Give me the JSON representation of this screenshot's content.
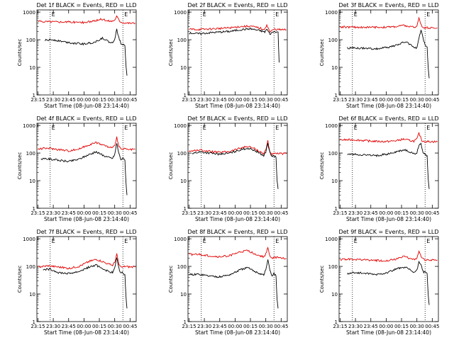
{
  "figure": {
    "background": "#ffffff",
    "axis_color": "#000000",
    "events_color": "#000000",
    "lld_color": "#e00000"
  },
  "chart_data": [
    {
      "type": "line",
      "title": "Det 1f BLACK = Events, RED = LLD",
      "xlabel": "Start Time (08-Jun-08 23:14:40)",
      "ylabel": "Counts/sec",
      "x_ticks": [
        "23:15",
        "23:30",
        "23:45",
        "00:00",
        "00:15",
        "00:30",
        "00:45"
      ],
      "y_ticks": [
        "1",
        "10",
        "100",
        "1000"
      ],
      "ylim": [
        1,
        1200
      ],
      "yscale": "log",
      "dotted_lines_at": [
        "23:27",
        "00:38"
      ],
      "markers": [
        "E",
        "E"
      ],
      "series": [
        {
          "name": "Events",
          "color": "#000000",
          "x": [
            "23:22",
            "23:30",
            "23:40",
            "23:50",
            "00:00",
            "00:10",
            "00:18",
            "00:22",
            "00:25",
            "00:28",
            "00:30",
            "00:32",
            "00:34",
            "00:36",
            "00:38",
            "00:40",
            "00:41",
            "00:42"
          ],
          "y": [
            95,
            100,
            85,
            75,
            70,
            80,
            115,
            95,
            80,
            75,
            110,
            230,
            120,
            75,
            70,
            60,
            12,
            5
          ]
        },
        {
          "name": "LLD",
          "color": "#e00000",
          "x": [
            "23:15",
            "23:30",
            "23:45",
            "00:00",
            "00:10",
            "00:17",
            "00:22",
            "00:27",
            "00:30",
            "00:32",
            "00:35",
            "00:38",
            "00:45",
            "00:50"
          ],
          "y": [
            460,
            450,
            440,
            420,
            470,
            560,
            490,
            470,
            520,
            700,
            470,
            420,
            400,
            400
          ]
        }
      ]
    },
    {
      "type": "line",
      "title": "Det 2f BLACK = Events, RED = LLD",
      "xlabel": "Start Time (08-Jun-08 23:14:40)",
      "ylabel": "Counts/sec",
      "x_ticks": [
        "23:15",
        "23:30",
        "23:45",
        "00:00",
        "00:15",
        "00:30",
        "00:45"
      ],
      "y_ticks": [
        "1",
        "10",
        "100",
        "1000"
      ],
      "ylim": [
        1,
        1200
      ],
      "yscale": "log",
      "dotted_lines_at": [
        "23:27",
        "00:38"
      ],
      "markers": [
        "E",
        "E"
      ],
      "series": [
        {
          "name": "Events",
          "color": "#000000",
          "x": [
            "23:15",
            "23:25",
            "23:40",
            "23:55",
            "00:05",
            "00:15",
            "00:25",
            "00:29",
            "00:31",
            "00:34",
            "00:38",
            "00:42",
            "00:43"
          ],
          "y": [
            175,
            165,
            185,
            200,
            230,
            250,
            210,
            190,
            240,
            160,
            200,
            190,
            15
          ]
        },
        {
          "name": "LLD",
          "color": "#e00000",
          "x": [
            "23:15",
            "23:25",
            "23:40",
            "23:55",
            "00:05",
            "00:15",
            "00:25",
            "00:28",
            "00:31",
            "00:34",
            "00:38",
            "00:45",
            "00:50"
          ],
          "y": [
            240,
            235,
            250,
            270,
            300,
            310,
            260,
            220,
            350,
            190,
            240,
            230,
            230
          ]
        }
      ]
    },
    {
      "type": "line",
      "title": "Det 3f BLACK = Events, RED = LLD",
      "xlabel": "Start Time (08-Jun-08 23:14:40)",
      "ylabel": "Counts/sec",
      "x_ticks": [
        "23:15",
        "23:30",
        "23:45",
        "00:00",
        "00:15",
        "00:30",
        "00:45"
      ],
      "y_ticks": [
        "1",
        "10",
        "100",
        "1000"
      ],
      "ylim": [
        1,
        1200
      ],
      "yscale": "log",
      "dotted_lines_at": [
        "23:27",
        "00:38"
      ],
      "markers": [
        "E",
        "E"
      ],
      "series": [
        {
          "name": "Events",
          "color": "#000000",
          "x": [
            "23:22",
            "23:30",
            "23:40",
            "23:50",
            "00:00",
            "00:10",
            "00:18",
            "00:23",
            "00:27",
            "00:30",
            "00:32",
            "00:34",
            "00:36",
            "00:38",
            "00:40",
            "00:41",
            "00:42"
          ],
          "y": [
            50,
            50,
            48,
            47,
            52,
            62,
            85,
            70,
            55,
            50,
            110,
            210,
            120,
            60,
            55,
            10,
            4
          ]
        },
        {
          "name": "LLD",
          "color": "#e00000",
          "x": [
            "23:15",
            "23:30",
            "23:45",
            "00:00",
            "00:10",
            "00:17",
            "00:22",
            "00:27",
            "00:30",
            "00:32",
            "00:35",
            "00:38",
            "00:45",
            "00:50"
          ],
          "y": [
            290,
            285,
            280,
            285,
            300,
            330,
            300,
            280,
            310,
            600,
            300,
            270,
            270,
            265
          ]
        }
      ]
    },
    {
      "type": "line",
      "title": "Det 4f BLACK = Events, RED = LLD",
      "xlabel": "Start Time (08-Jun-08 23:14:40)",
      "ylabel": "Counts/sec",
      "x_ticks": [
        "23:15",
        "23:30",
        "23:45",
        "00:00",
        "00:15",
        "00:30",
        "00:45"
      ],
      "y_ticks": [
        "1",
        "10",
        "100",
        "1000"
      ],
      "ylim": [
        1,
        1200
      ],
      "yscale": "log",
      "dotted_lines_at": [
        "23:27",
        "00:38"
      ],
      "markers": [
        "E",
        "E"
      ],
      "series": [
        {
          "name": "Events",
          "color": "#000000",
          "x": [
            "23:18",
            "23:25",
            "23:35",
            "23:45",
            "23:55",
            "00:05",
            "00:12",
            "00:18",
            "00:24",
            "00:28",
            "00:30",
            "00:32",
            "00:34",
            "00:36",
            "00:38",
            "00:40",
            "00:41",
            "00:42"
          ],
          "y": [
            60,
            62,
            55,
            50,
            60,
            90,
            110,
            85,
            70,
            65,
            90,
            230,
            100,
            60,
            65,
            55,
            8,
            3
          ]
        },
        {
          "name": "LLD",
          "color": "#e00000",
          "x": [
            "23:15",
            "23:25",
            "23:35",
            "23:45",
            "23:55",
            "00:05",
            "00:12",
            "00:18",
            "00:24",
            "00:28",
            "00:30",
            "00:32",
            "00:34",
            "00:36",
            "00:40",
            "00:45",
            "00:50"
          ],
          "y": [
            140,
            150,
            135,
            120,
            140,
            200,
            240,
            200,
            165,
            150,
            200,
            380,
            170,
            140,
            140,
            130,
            140
          ]
        }
      ]
    },
    {
      "type": "line",
      "title": "Det 5f BLACK = Events, RED = LLD",
      "xlabel": "Start Time (08-Jun-08 23:14:40)",
      "ylabel": "Counts/sec",
      "x_ticks": [
        "23:15",
        "23:30",
        "23:45",
        "00:00",
        "00:15",
        "00:30",
        "00:45"
      ],
      "y_ticks": [
        "1",
        "10",
        "100",
        "1000"
      ],
      "ylim": [
        1,
        1200
      ],
      "yscale": "log",
      "dotted_lines_at": [
        "23:27",
        "00:38"
      ],
      "markers": [
        "E",
        "E"
      ],
      "series": [
        {
          "name": "Events",
          "color": "#000000",
          "x": [
            "23:18",
            "23:25",
            "23:35",
            "23:45",
            "23:55",
            "00:05",
            "00:12",
            "00:18",
            "00:24",
            "00:28",
            "00:30",
            "00:32",
            "00:34",
            "00:36",
            "00:38",
            "00:40",
            "00:41",
            "00:42"
          ],
          "y": [
            95,
            110,
            100,
            90,
            100,
            130,
            150,
            130,
            100,
            80,
            110,
            230,
            100,
            75,
            80,
            70,
            10,
            5
          ]
        },
        {
          "name": "LLD",
          "color": "#e00000",
          "x": [
            "23:15",
            "23:25",
            "23:35",
            "23:45",
            "23:55",
            "00:05",
            "00:12",
            "00:18",
            "00:24",
            "00:28",
            "00:30",
            "00:32",
            "00:34",
            "00:36",
            "00:40",
            "00:45",
            "00:50"
          ],
          "y": [
            115,
            130,
            115,
            105,
            115,
            150,
            175,
            150,
            115,
            95,
            130,
            280,
            110,
            90,
            95,
            95,
            95
          ]
        }
      ]
    },
    {
      "type": "line",
      "title": "Det 6f BLACK = Events, RED = LLD",
      "xlabel": "Start Time (08-Jun-08 23:14:40)",
      "ylabel": "Counts/sec",
      "x_ticks": [
        "23:15",
        "23:30",
        "23:45",
        "00:00",
        "00:15",
        "00:30",
        "00:45"
      ],
      "y_ticks": [
        "1",
        "10",
        "100",
        "1000"
      ],
      "ylim": [
        1,
        1200
      ],
      "yscale": "log",
      "dotted_lines_at": [
        "23:27",
        "00:38"
      ],
      "markers": [
        "E",
        "E"
      ],
      "series": [
        {
          "name": "Events",
          "color": "#000000",
          "x": [
            "23:22",
            "23:30",
            "23:40",
            "23:50",
            "00:00",
            "00:10",
            "00:18",
            "00:23",
            "00:27",
            "00:30",
            "00:32",
            "00:34",
            "00:36",
            "00:38",
            "00:40",
            "00:41",
            "00:42"
          ],
          "y": [
            90,
            90,
            85,
            80,
            90,
            110,
            130,
            110,
            95,
            100,
            200,
            220,
            100,
            90,
            80,
            12,
            5
          ]
        },
        {
          "name": "LLD",
          "color": "#e00000",
          "x": [
            "23:15",
            "23:30",
            "23:45",
            "00:00",
            "00:10",
            "00:17",
            "00:22",
            "00:27",
            "00:30",
            "00:32",
            "00:35",
            "00:38",
            "00:45",
            "00:50"
          ],
          "y": [
            300,
            300,
            270,
            260,
            280,
            320,
            290,
            270,
            320,
            520,
            280,
            260,
            260,
            255
          ]
        }
      ]
    },
    {
      "type": "line",
      "title": "Det 7f BLACK = Events, RED = LLD",
      "xlabel": "Start Time (08-Jun-08 23:14:40)",
      "ylabel": "Counts/sec",
      "x_ticks": [
        "23:15",
        "23:30",
        "23:45",
        "00:00",
        "00:15",
        "00:30",
        "00:45"
      ],
      "y_ticks": [
        "1",
        "10",
        "100",
        "1000"
      ],
      "ylim": [
        1,
        1200
      ],
      "yscale": "log",
      "dotted_lines_at": [
        "23:27",
        "00:38"
      ],
      "markers": [
        "E",
        "E"
      ],
      "series": [
        {
          "name": "Events",
          "color": "#000000",
          "x": [
            "23:20",
            "23:27",
            "23:35",
            "23:45",
            "23:55",
            "00:05",
            "00:12",
            "00:18",
            "00:24",
            "00:28",
            "00:30",
            "00:32",
            "00:34",
            "00:36",
            "00:38",
            "00:40",
            "00:41",
            "00:42"
          ],
          "y": [
            75,
            80,
            60,
            55,
            65,
            95,
            110,
            85,
            65,
            60,
            85,
            210,
            90,
            55,
            60,
            50,
            8,
            3
          ]
        },
        {
          "name": "LLD",
          "color": "#e00000",
          "x": [
            "23:15",
            "23:25",
            "23:35",
            "23:45",
            "23:55",
            "00:05",
            "00:12",
            "00:18",
            "00:24",
            "00:28",
            "00:30",
            "00:32",
            "00:34",
            "00:36",
            "00:40",
            "00:45",
            "00:50"
          ],
          "y": [
            95,
            105,
            95,
            85,
            100,
            150,
            180,
            150,
            120,
            110,
            140,
            280,
            120,
            90,
            100,
            95,
            95
          ]
        }
      ]
    },
    {
      "type": "line",
      "title": "Det 8f BLACK = Events, RED = LLD",
      "xlabel": "Start Time (08-Jun-08 23:14:40)",
      "ylabel": "Counts/sec",
      "x_ticks": [
        "23:15",
        "23:30",
        "23:45",
        "00:00",
        "00:15",
        "00:30",
        "00:45"
      ],
      "y_ticks": [
        "1",
        "10",
        "100",
        "1000"
      ],
      "ylim": [
        1,
        1200
      ],
      "yscale": "log",
      "dotted_lines_at": [
        "23:27",
        "00:38"
      ],
      "markers": [
        "E",
        "E"
      ],
      "series": [
        {
          "name": "Events",
          "color": "#000000",
          "x": [
            "23:15",
            "23:25",
            "23:35",
            "23:45",
            "23:55",
            "00:05",
            "00:12",
            "00:18",
            "00:24",
            "00:28",
            "00:30",
            "00:32",
            "00:34",
            "00:36",
            "00:38",
            "00:40",
            "00:41",
            "00:42"
          ],
          "y": [
            50,
            52,
            45,
            42,
            50,
            75,
            90,
            70,
            55,
            50,
            75,
            170,
            75,
            45,
            55,
            45,
            6,
            3
          ]
        },
        {
          "name": "LLD",
          "color": "#e00000",
          "x": [
            "23:15",
            "23:25",
            "23:35",
            "23:45",
            "23:55",
            "00:05",
            "00:12",
            "00:18",
            "00:24",
            "00:28",
            "00:30",
            "00:32",
            "00:34",
            "00:36",
            "00:40",
            "00:45",
            "00:50"
          ],
          "y": [
            270,
            270,
            240,
            220,
            250,
            330,
            370,
            300,
            240,
            220,
            280,
            460,
            240,
            200,
            210,
            200,
            195
          ]
        }
      ]
    },
    {
      "type": "line",
      "title": "Det 9f BLACK = Events, RED = LLD",
      "xlabel": "Start Time (08-Jun-08 23:14:40)",
      "ylabel": "Counts/sec",
      "x_ticks": [
        "23:15",
        "23:30",
        "23:45",
        "00:00",
        "00:15",
        "00:30",
        "00:45"
      ],
      "y_ticks": [
        "1",
        "10",
        "100",
        "1000"
      ],
      "ylim": [
        1,
        1200
      ],
      "yscale": "log",
      "dotted_lines_at": [
        "23:27",
        "00:38"
      ],
      "markers": [
        "E",
        "E"
      ],
      "series": [
        {
          "name": "Events",
          "color": "#000000",
          "x": [
            "23:22",
            "23:30",
            "23:40",
            "23:50",
            "00:00",
            "00:10",
            "00:18",
            "00:23",
            "00:27",
            "00:30",
            "00:32",
            "00:34",
            "00:36",
            "00:38",
            "00:40",
            "00:41",
            "00:42"
          ],
          "y": [
            55,
            60,
            55,
            50,
            58,
            80,
            95,
            75,
            60,
            70,
            150,
            120,
            65,
            60,
            55,
            10,
            4
          ]
        },
        {
          "name": "LLD",
          "color": "#e00000",
          "x": [
            "23:15",
            "23:30",
            "23:45",
            "00:00",
            "00:10",
            "00:17",
            "00:22",
            "00:27",
            "00:30",
            "00:32",
            "00:35",
            "00:38",
            "00:45",
            "00:50"
          ],
          "y": [
            180,
            180,
            165,
            160,
            180,
            230,
            200,
            180,
            200,
            340,
            190,
            170,
            170,
            170
          ]
        }
      ]
    }
  ]
}
